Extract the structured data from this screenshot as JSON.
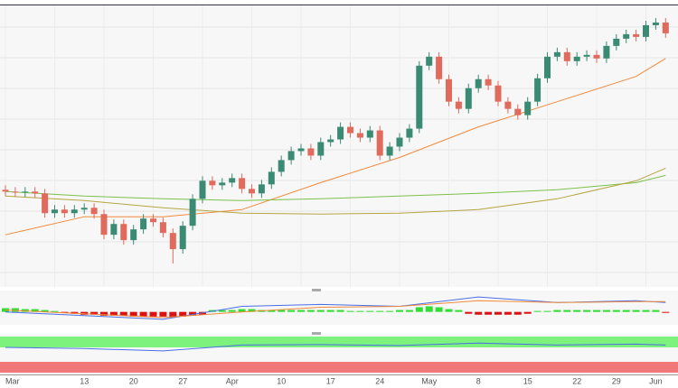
{
  "chart_data": [
    {
      "type": "candlestick",
      "categories": [
        "Mar",
        null,
        null,
        null,
        null,
        null,
        null,
        null,
        "13",
        null,
        null,
        null,
        null,
        "20",
        null,
        null,
        null,
        null,
        "27",
        null,
        null,
        null,
        null,
        "Apr",
        null,
        null,
        null,
        null,
        "10",
        null,
        null,
        null,
        null,
        "17",
        null,
        null,
        null,
        null,
        "24",
        null,
        null,
        null,
        null,
        "May",
        null,
        null,
        null,
        null,
        "8",
        null,
        null,
        null,
        null,
        "15",
        null,
        null,
        null,
        null,
        "22",
        null,
        null,
        null,
        "29",
        null,
        null,
        null,
        "Jun",
        null
      ],
      "open": [
        102,
        100,
        99,
        100,
        98,
        76,
        80,
        76,
        80,
        82,
        75,
        52,
        64,
        46,
        58,
        70,
        66,
        54,
        36,
        62,
        92,
        112,
        107,
        110,
        115,
        103,
        98,
        108,
        122,
        135,
        145,
        148,
        140,
        155,
        158,
        172,
        165,
        160,
        168,
        140,
        150,
        160,
        170,
        240,
        250,
        225,
        200,
        192,
        215,
        225,
        218,
        200,
        192,
        185,
        200,
        226,
        250,
        255,
        245,
        250,
        252,
        248,
        262,
        270,
        275,
        272,
        285,
        288
      ],
      "high": [
        107,
        105,
        105,
        105,
        103,
        85,
        85,
        85,
        87,
        87,
        80,
        69,
        69,
        63,
        75,
        75,
        71,
        59,
        67,
        97,
        117,
        117,
        115,
        120,
        120,
        108,
        113,
        127,
        140,
        150,
        153,
        153,
        160,
        163,
        177,
        177,
        170,
        173,
        173,
        155,
        165,
        175,
        245,
        255,
        255,
        230,
        205,
        220,
        230,
        230,
        223,
        205,
        197,
        205,
        231,
        255,
        260,
        260,
        255,
        257,
        257,
        267,
        275,
        280,
        280,
        290,
        293,
        293
      ],
      "low": [
        95,
        94,
        94,
        93,
        71,
        71,
        71,
        71,
        75,
        70,
        47,
        47,
        41,
        41,
        53,
        61,
        49,
        20,
        31,
        57,
        87,
        102,
        102,
        105,
        98,
        93,
        93,
        103,
        117,
        130,
        140,
        135,
        135,
        150,
        153,
        160,
        155,
        155,
        135,
        135,
        145,
        155,
        165,
        235,
        220,
        195,
        187,
        187,
        210,
        213,
        195,
        187,
        180,
        180,
        195,
        221,
        245,
        240,
        240,
        245,
        243,
        243,
        257,
        265,
        267,
        267,
        280,
        271
      ],
      "close": [
        100,
        99,
        100,
        98,
        76,
        80,
        76,
        80,
        82,
        75,
        52,
        64,
        46,
        58,
        70,
        66,
        54,
        36,
        62,
        92,
        112,
        107,
        110,
        115,
        103,
        98,
        108,
        122,
        135,
        145,
        148,
        140,
        155,
        158,
        172,
        165,
        160,
        168,
        140,
        150,
        160,
        170,
        240,
        250,
        225,
        200,
        192,
        215,
        225,
        218,
        200,
        192,
        185,
        200,
        226,
        250,
        255,
        245,
        250,
        252,
        248,
        262,
        270,
        275,
        272,
        285,
        288,
        276
      ],
      "up_color": "#3b8a74",
      "down_color": "#e06a5c",
      "ylim": [
        0,
        305
      ],
      "grid": true,
      "series": [
        {
          "color": "#f08a3c",
          "x": [
            0,
            8,
            16,
            24,
            32,
            40,
            48,
            56,
            64,
            67
          ],
          "values": [
            52,
            72,
            72,
            80,
            110,
            138,
            172,
            200,
            228,
            248
          ]
        },
        {
          "color": "#7cc04a",
          "x": [
            0,
            8,
            16,
            24,
            32,
            40,
            48,
            56,
            64,
            67
          ],
          "values": [
            100,
            95,
            92,
            90,
            92,
            95,
            98,
            102,
            110,
            118
          ]
        },
        {
          "color": "#b5a542",
          "x": [
            0,
            8,
            16,
            24,
            32,
            40,
            48,
            56,
            64,
            67
          ],
          "values": [
            95,
            90,
            82,
            76,
            75,
            76,
            80,
            92,
            112,
            126
          ]
        }
      ]
    },
    {
      "type": "macd",
      "values": [
        4,
        4,
        3,
        3,
        2,
        1,
        -1,
        -2,
        -3,
        -3,
        -4,
        -4,
        -4,
        -5,
        -5,
        -5,
        -5,
        -6,
        -5,
        -4,
        -3,
        2,
        2,
        2,
        3,
        3,
        2,
        2,
        2,
        2,
        2,
        2,
        2,
        2,
        2,
        1,
        1,
        1,
        1,
        1,
        2,
        2,
        5,
        6,
        5,
        3,
        2,
        -2,
        -3,
        -3,
        -3,
        -3,
        -3,
        -2,
        1,
        1,
        2,
        2,
        2,
        2,
        2,
        2,
        2,
        2,
        2,
        2,
        2,
        -1
      ],
      "pos_color": "#33dd33",
      "neg_color": "#dd1111",
      "ylim": [
        -10,
        20
      ],
      "series": [
        {
          "color": "#4a6ee8",
          "x": [
            0,
            8,
            16,
            24,
            32,
            40,
            48,
            56,
            64,
            67
          ],
          "values": [
            0,
            -4,
            -8,
            6,
            8,
            6,
            16,
            10,
            12,
            10
          ]
        },
        {
          "color": "#f08a3c",
          "x": [
            0,
            8,
            16,
            24,
            32,
            40,
            48,
            56,
            64,
            67
          ],
          "values": [
            2,
            -2,
            -6,
            0,
            5,
            6,
            12,
            10,
            11,
            11
          ]
        }
      ]
    },
    {
      "type": "rsi",
      "ylim": [
        0,
        100
      ],
      "series": [
        {
          "color": "#4a6ee8",
          "x": [
            0,
            8,
            16,
            24,
            32,
            40,
            48,
            56,
            64,
            67
          ],
          "values": [
            50,
            45,
            35,
            60,
            62,
            58,
            68,
            60,
            64,
            60
          ]
        }
      ]
    }
  ]
}
